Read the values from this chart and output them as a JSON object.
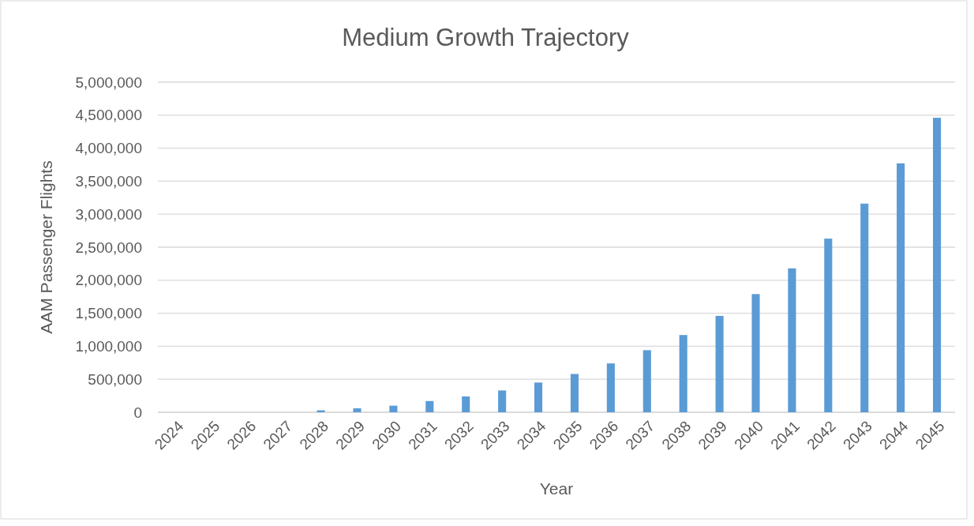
{
  "chart_data": {
    "type": "bar",
    "title": "Medium Growth Trajectory",
    "xlabel": "Year",
    "ylabel": "AAM Passenger Flights",
    "categories": [
      "2024",
      "2025",
      "2026",
      "2027",
      "2028",
      "2029",
      "2030",
      "2031",
      "2032",
      "2033",
      "2034",
      "2035",
      "2036",
      "2037",
      "2038",
      "2039",
      "2040",
      "2041",
      "2042",
      "2043",
      "2044",
      "2045"
    ],
    "values": [
      0,
      0,
      0,
      0,
      30000,
      60000,
      100000,
      170000,
      240000,
      330000,
      450000,
      580000,
      740000,
      940000,
      1170000,
      1460000,
      1790000,
      2180000,
      2630000,
      3160000,
      3770000,
      4460000
    ],
    "color": "#5b9bd5",
    "ylim": [
      0,
      5000000
    ],
    "yticks": [
      {
        "value": 0,
        "label": "0"
      },
      {
        "value": 500000,
        "label": "500,000"
      },
      {
        "value": 1000000,
        "label": "1,000,000"
      },
      {
        "value": 1500000,
        "label": "1,500,000"
      },
      {
        "value": 2000000,
        "label": "2,000,000"
      },
      {
        "value": 2500000,
        "label": "2,500,000"
      },
      {
        "value": 3000000,
        "label": "3,000,000"
      },
      {
        "value": 3500000,
        "label": "3,500,000"
      },
      {
        "value": 4000000,
        "label": "4,000,000"
      },
      {
        "value": 4500000,
        "label": "4,500,000"
      },
      {
        "value": 5000000,
        "label": "5,000,000"
      }
    ],
    "grid": "y"
  }
}
